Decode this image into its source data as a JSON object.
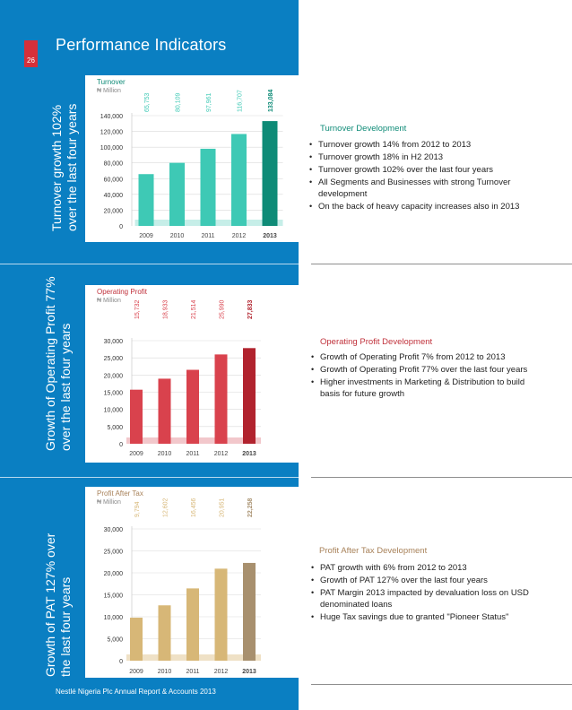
{
  "page": {
    "number": "26",
    "title": "Performance Indicators",
    "footer": "Nestlé Nigeria Plc Annual Report & Accounts 2013"
  },
  "colors": {
    "blue": "#0a7fc2",
    "teal": "#3ec9b5",
    "teal_dark": "#0e8b77",
    "red": "#d9424d",
    "red_dark": "#b1232e",
    "tan": "#d7b777",
    "tan_dark": "#a8906e"
  },
  "sections": [
    {
      "side_title": [
        "Turnover growth 102%",
        "over the last four years"
      ],
      "chart_title": "Turnover",
      "chart_unit": "₦ Million",
      "dev_title": "Turnover Development",
      "bullets": [
        "Turnover growth 14% from 2012 to 2013",
        "Turnover growth 18% in H2 2013",
        "Turnover growth 102% over the last four years",
        "All Segments and Businesses with strong Turnover development",
        "On the back of heavy capacity increases also in 2013"
      ]
    },
    {
      "side_title": [
        "Growth of Operating Profit 77%",
        "over the last four years"
      ],
      "chart_title": "Operating Profit",
      "chart_unit": "₦ Million",
      "dev_title": "Operating Profit Development",
      "bullets": [
        "Growth of Operating Profit 7% from 2012 to 2013",
        "Growth of Operating Profit 77% over the last four years",
        "Higher investments in Marketing & Distribution to build basis for future growth"
      ]
    },
    {
      "side_title": [
        "Growth of PAT 127% over",
        "the last four years"
      ],
      "chart_title": "Profit After Tax",
      "chart_unit": "₦ Million",
      "dev_title": "Profit After Tax Development",
      "bullets": [
        "PAT growth with 6% from 2012 to 2013",
        "Growth of PAT 127% over the last four years",
        "PAT Margin 2013 impacted by devaluation loss on USD denominated loans",
        "Huge Tax savings due to granted \"Pioneer Status\""
      ]
    }
  ],
  "chart_data": [
    {
      "type": "bar",
      "title": "Turnover",
      "ylabel": "₦ Million",
      "categories": [
        "2009",
        "2010",
        "2011",
        "2012",
        "2013"
      ],
      "values": [
        65753,
        80109,
        97961,
        116707,
        133084
      ],
      "value_labels": [
        "65,753",
        "80,109",
        "97,961",
        "116,707",
        "133,084"
      ],
      "yticks": [
        "0",
        "20,000",
        "40,000",
        "60,000",
        "80,000",
        "100,000",
        "120,000",
        "140,000"
      ],
      "ylim": [
        0,
        140000
      ]
    },
    {
      "type": "bar",
      "title": "Operating Profit",
      "ylabel": "₦ Million",
      "categories": [
        "2009",
        "2010",
        "2011",
        "2012",
        "2013"
      ],
      "values": [
        15732,
        18933,
        21514,
        25990,
        27833
      ],
      "value_labels": [
        "15,732",
        "18,933",
        "21,514",
        "25,990",
        "27,833"
      ],
      "yticks": [
        "0",
        "5,000",
        "10,000",
        "15,000",
        "20,000",
        "25,000",
        "30,000"
      ],
      "ylim": [
        0,
        30000
      ]
    },
    {
      "type": "bar",
      "title": "Profit After Tax",
      "ylabel": "₦ Million",
      "categories": [
        "2009",
        "2010",
        "2011",
        "2012",
        "2013"
      ],
      "values": [
        9794,
        12602,
        16456,
        20951,
        22258
      ],
      "value_labels": [
        "9,794",
        "12,602",
        "16,456",
        "20,951",
        "22,258"
      ],
      "yticks": [
        "0",
        "5,000",
        "10,000",
        "15,000",
        "20,000",
        "25,000",
        "30,000"
      ],
      "ylim": [
        0,
        30000
      ]
    }
  ]
}
